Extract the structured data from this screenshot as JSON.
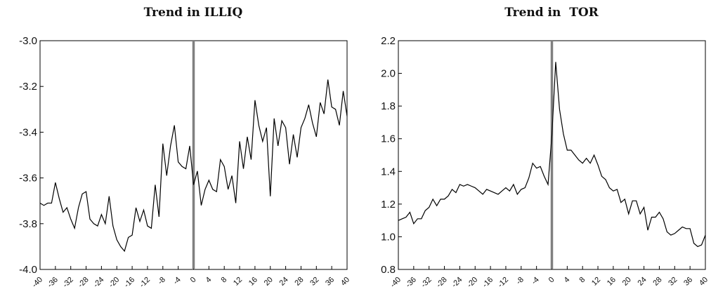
{
  "chart_data": [
    {
      "type": "line",
      "title": "Trend in ILLIQ",
      "xlabel": "",
      "ylabel": "",
      "xlim": [
        -40,
        40
      ],
      "ylim": [
        -4.0,
        -3.0
      ],
      "x_ticks": [
        -40,
        -36,
        -32,
        -28,
        -24,
        -20,
        -16,
        -12,
        -8,
        -4,
        0,
        4,
        8,
        12,
        16,
        20,
        24,
        28,
        32,
        36,
        40
      ],
      "y_ticks": [
        -4.0,
        -3.8,
        -3.6,
        -3.4,
        -3.2,
        -3.0
      ],
      "y_tick_labels": [
        "-4.0",
        "-3.8",
        "-3.6",
        "-3.4",
        "-3.2",
        "-3.0"
      ],
      "event_line_x": 0,
      "grid": false,
      "x": [
        -40,
        -39,
        -38,
        -37,
        -36,
        -35,
        -34,
        -33,
        -32,
        -31,
        -30,
        -29,
        -28,
        -27,
        -26,
        -25,
        -24,
        -23,
        -22,
        -21,
        -20,
        -19,
        -18,
        -17,
        -16,
        -15,
        -14,
        -13,
        -12,
        -11,
        -10,
        -9,
        -8,
        -7,
        -6,
        -5,
        -4,
        -3,
        -2,
        -1,
        0,
        1,
        2,
        3,
        4,
        5,
        6,
        7,
        8,
        9,
        10,
        11,
        12,
        13,
        14,
        15,
        16,
        17,
        18,
        19,
        20,
        21,
        22,
        23,
        24,
        25,
        26,
        27,
        28,
        29,
        30,
        31,
        32,
        33,
        34,
        35,
        36,
        37,
        38,
        39,
        40
      ],
      "y": [
        -3.71,
        -3.72,
        -3.71,
        -3.71,
        -3.62,
        -3.69,
        -3.75,
        -3.73,
        -3.78,
        -3.82,
        -3.73,
        -3.67,
        -3.66,
        -3.78,
        -3.8,
        -3.81,
        -3.76,
        -3.8,
        -3.68,
        -3.81,
        -3.87,
        -3.9,
        -3.92,
        -3.86,
        -3.85,
        -3.73,
        -3.79,
        -3.74,
        -3.81,
        -3.82,
        -3.63,
        -3.77,
        -3.45,
        -3.59,
        -3.46,
        -3.37,
        -3.53,
        -3.55,
        -3.56,
        -3.46,
        -3.63,
        -3.57,
        -3.72,
        -3.65,
        -3.61,
        -3.65,
        -3.66,
        -3.52,
        -3.55,
        -3.65,
        -3.59,
        -3.71,
        -3.44,
        -3.56,
        -3.42,
        -3.52,
        -3.26,
        -3.37,
        -3.44,
        -3.38,
        -3.68,
        -3.34,
        -3.46,
        -3.35,
        -3.38,
        -3.54,
        -3.41,
        -3.51,
        -3.38,
        -3.34,
        -3.28,
        -3.36,
        -3.42,
        -3.27,
        -3.32,
        -3.17,
        -3.29,
        -3.3,
        -3.37,
        -3.22,
        -3.33
      ]
    },
    {
      "type": "line",
      "title": "Trend in  TOR",
      "xlabel": "",
      "ylabel": "",
      "xlim": [
        -40,
        40
      ],
      "ylim": [
        0.8,
        2.2
      ],
      "x_ticks": [
        -40,
        -36,
        -32,
        -28,
        -24,
        -20,
        -16,
        -12,
        -8,
        -4,
        0,
        4,
        8,
        12,
        16,
        20,
        24,
        28,
        32,
        36,
        40
      ],
      "y_ticks": [
        0.8,
        1.0,
        1.2,
        1.4,
        1.6,
        1.8,
        2.0,
        2.2
      ],
      "y_tick_labels": [
        "0.8",
        "1.0",
        "1.2",
        "1.4",
        "1.6",
        "1.8",
        "2.0",
        "2.2"
      ],
      "event_line_x": 0,
      "grid": false,
      "x": [
        -40,
        -39,
        -38,
        -37,
        -36,
        -35,
        -34,
        -33,
        -32,
        -31,
        -30,
        -29,
        -28,
        -27,
        -26,
        -25,
        -24,
        -23,
        -22,
        -21,
        -20,
        -19,
        -18,
        -17,
        -16,
        -15,
        -14,
        -13,
        -12,
        -11,
        -10,
        -9,
        -8,
        -7,
        -6,
        -5,
        -4,
        -3,
        -2,
        -1,
        0,
        1,
        2,
        3,
        4,
        5,
        6,
        7,
        8,
        9,
        10,
        11,
        12,
        13,
        14,
        15,
        16,
        17,
        18,
        19,
        20,
        21,
        22,
        23,
        24,
        25,
        26,
        27,
        28,
        29,
        30,
        31,
        32,
        33,
        34,
        35,
        36,
        37,
        38,
        39,
        40
      ],
      "y": [
        1.1,
        1.11,
        1.12,
        1.15,
        1.08,
        1.11,
        1.11,
        1.16,
        1.18,
        1.23,
        1.19,
        1.23,
        1.23,
        1.25,
        1.29,
        1.27,
        1.32,
        1.31,
        1.32,
        1.31,
        1.3,
        1.28,
        1.26,
        1.29,
        1.28,
        1.27,
        1.26,
        1.28,
        1.3,
        1.28,
        1.32,
        1.26,
        1.29,
        1.3,
        1.36,
        1.45,
        1.42,
        1.43,
        1.37,
        1.32,
        1.62,
        2.07,
        1.78,
        1.63,
        1.53,
        1.53,
        1.5,
        1.47,
        1.45,
        1.48,
        1.45,
        1.5,
        1.44,
        1.37,
        1.35,
        1.3,
        1.28,
        1.29,
        1.21,
        1.23,
        1.14,
        1.22,
        1.22,
        1.14,
        1.18,
        1.04,
        1.12,
        1.12,
        1.15,
        1.11,
        1.03,
        1.01,
        1.02,
        1.04,
        1.06,
        1.05,
        1.05,
        0.96,
        0.94,
        0.95,
        1.01
      ]
    }
  ]
}
